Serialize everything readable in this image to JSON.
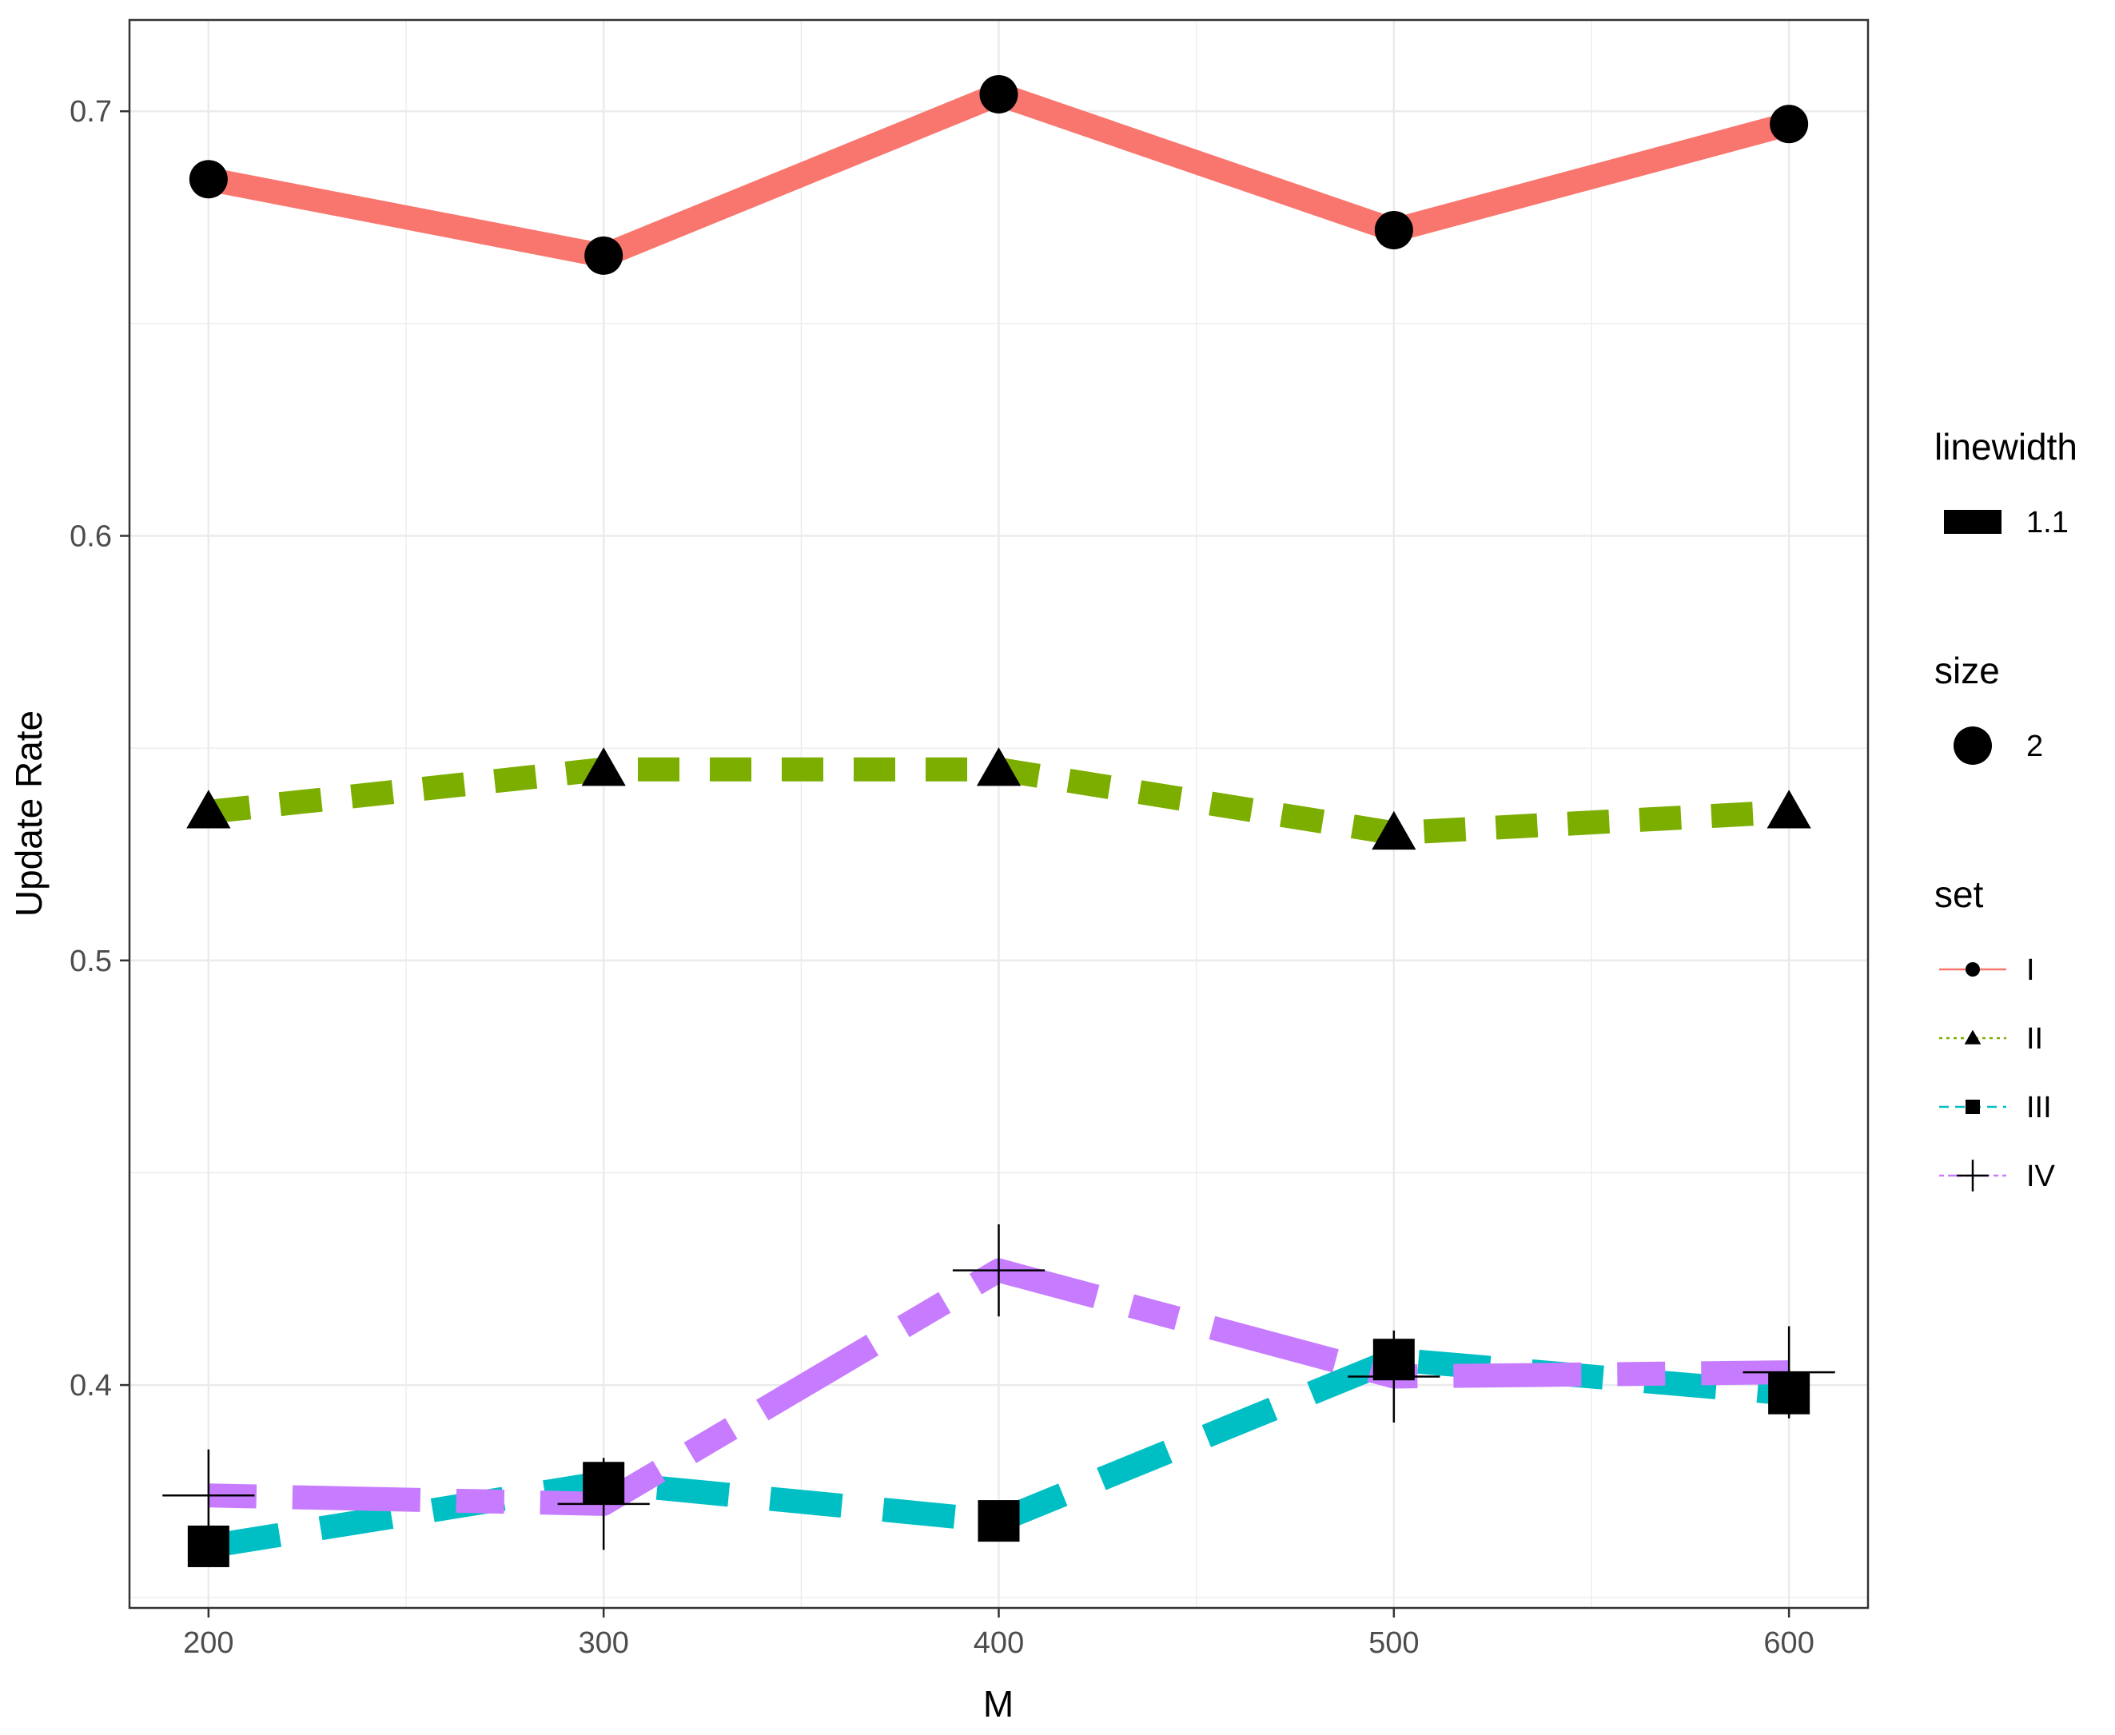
{
  "chart_data": {
    "type": "line",
    "title": "",
    "xlabel": "M",
    "ylabel": "Update Rate",
    "x": [
      200,
      300,
      400,
      500,
      600
    ],
    "xlim": [
      180,
      620
    ],
    "ylim": [
      0.3475,
      0.7215
    ],
    "xticks": [
      200,
      300,
      400,
      500,
      600
    ],
    "xtick_labels": [
      "200",
      "300",
      "400",
      "500",
      "600"
    ],
    "yticks": [
      0.4,
      0.5,
      0.6,
      0.7
    ],
    "ytick_labels": [
      "0.4",
      "0.5",
      "0.6",
      "0.7"
    ],
    "grid": true,
    "series": [
      {
        "name": "I",
        "values": [
          0.684,
          0.666,
          0.704,
          0.672,
          0.697
        ],
        "color": "#F8766D",
        "dash": "solid",
        "marker": "circle"
      },
      {
        "name": "II",
        "values": [
          0.535,
          0.545,
          0.545,
          0.53,
          0.535
        ],
        "color": "#7CAE00",
        "dash": "dashed",
        "marker": "triangle"
      },
      {
        "name": "III",
        "values": [
          0.362,
          0.377,
          0.368,
          0.406,
          0.398
        ],
        "color": "#00BFC4",
        "dash": "longdash",
        "marker": "square"
      },
      {
        "name": "IV",
        "values": [
          0.374,
          0.372,
          0.427,
          0.402,
          0.403
        ],
        "color": "#C77CFF",
        "dash": "twodash",
        "marker": "plus"
      }
    ],
    "legend": {
      "placement": "right",
      "groups": [
        {
          "title": "linewidth",
          "items": [
            {
              "label": "1.1",
              "key": "rect"
            }
          ]
        },
        {
          "title": "size",
          "items": [
            {
              "label": "2",
              "key": "circle"
            }
          ]
        },
        {
          "title": "set",
          "items": [
            {
              "label": "I",
              "series": "I"
            },
            {
              "label": "II",
              "series": "II"
            },
            {
              "label": "III",
              "series": "III"
            },
            {
              "label": "IV",
              "series": "IV"
            }
          ]
        }
      ]
    }
  }
}
